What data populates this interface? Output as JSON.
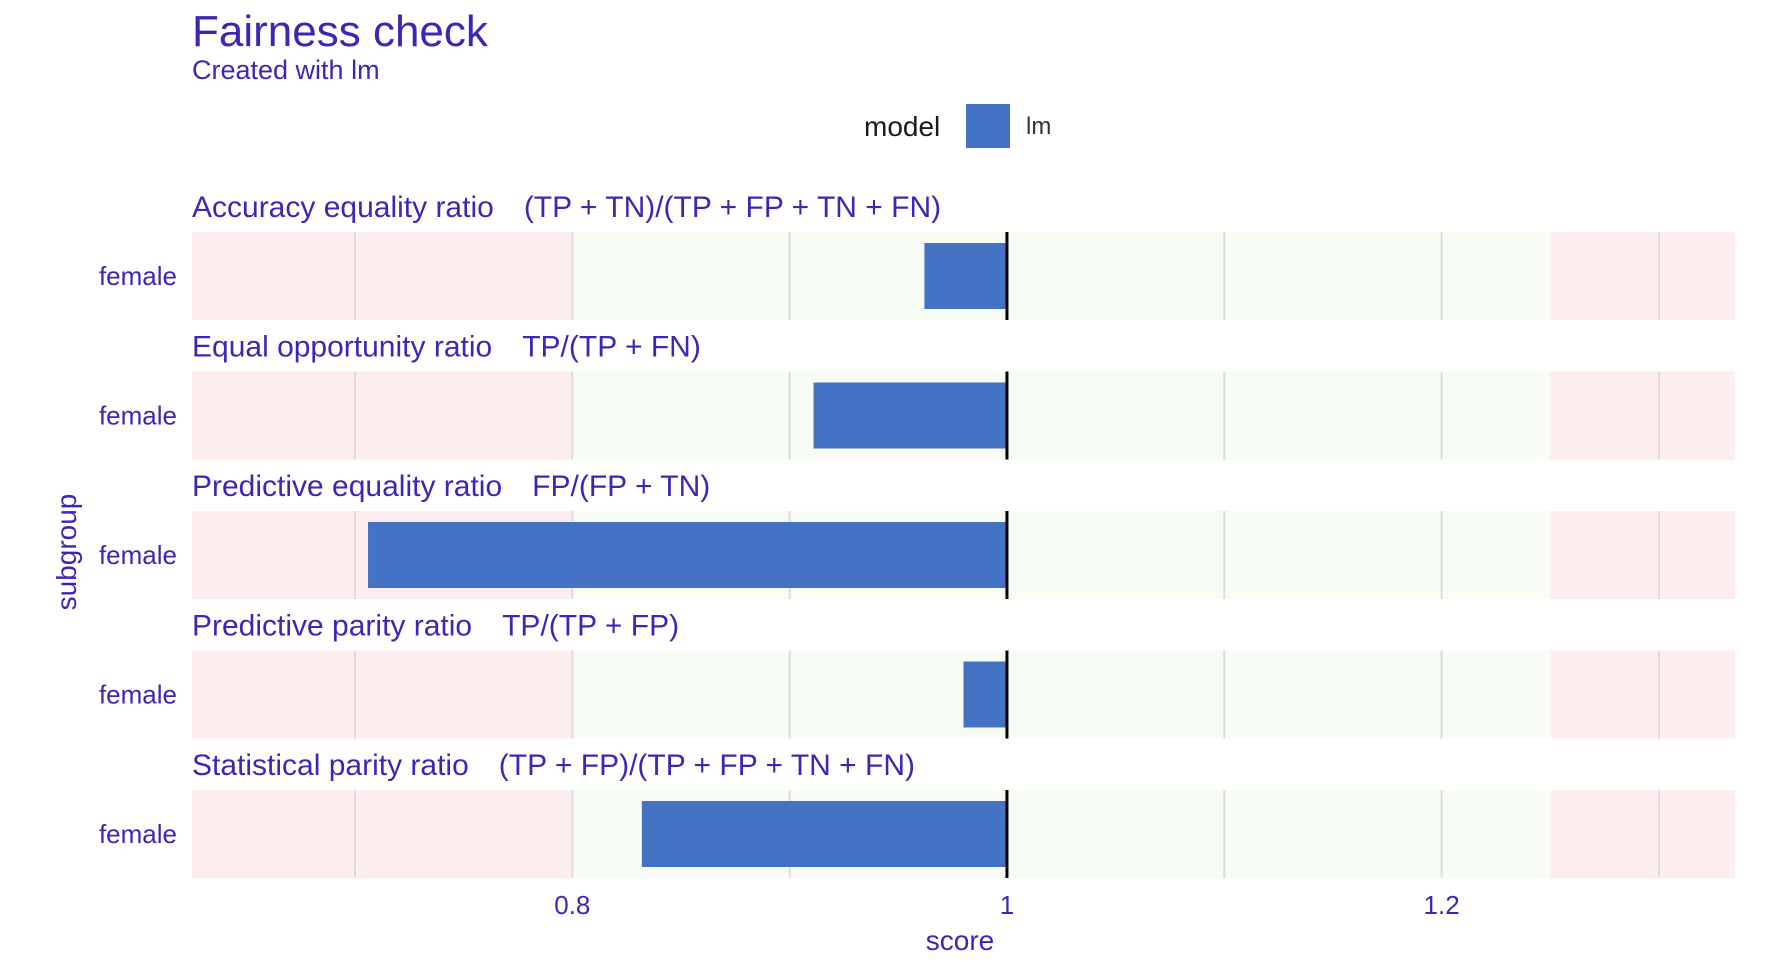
{
  "chart_data": {
    "type": "bar",
    "orientation": "horizontal",
    "title": "Fairness check",
    "subtitle": "Created with lm",
    "xlabel": "score",
    "ylabel": "subgroup",
    "xlim": [
      0.625,
      1.335
    ],
    "baseline": 1,
    "xticks": [
      0.8,
      1,
      1.2
    ],
    "xtick_labels": [
      "0.8",
      "1",
      "1.2"
    ],
    "acceptable_range": [
      0.8,
      1.25
    ],
    "grid": true,
    "legend": {
      "title": "model",
      "position": "top",
      "entries": [
        {
          "name": "lm",
          "color": "#4472C4"
        }
      ]
    },
    "colors": {
      "bar": "#4472C4",
      "ok_zone": "#F7FCF5",
      "bad_zone": "#FDEDEE",
      "text": "#3a28b4"
    },
    "facets": [
      {
        "metric": "Accuracy equality ratio",
        "formula": "(TP + TN)/(TP + FP + TN + FN)",
        "subgroup": "female",
        "value": 0.962
      },
      {
        "metric": "Equal opportunity ratio",
        "formula": "TP/(TP + FN)",
        "subgroup": "female",
        "value": 0.911
      },
      {
        "metric": "Predictive equality ratio",
        "formula": "FP/(FP + TN)",
        "subgroup": "female",
        "value": 0.706
      },
      {
        "metric": "Predictive parity ratio",
        "formula": "TP/(TP + FP)",
        "subgroup": "female",
        "value": 0.98
      },
      {
        "metric": "Statistical parity ratio",
        "formula": "(TP + FP)/(TP + FP + TN + FN)",
        "subgroup": "female",
        "value": 0.832
      }
    ]
  }
}
